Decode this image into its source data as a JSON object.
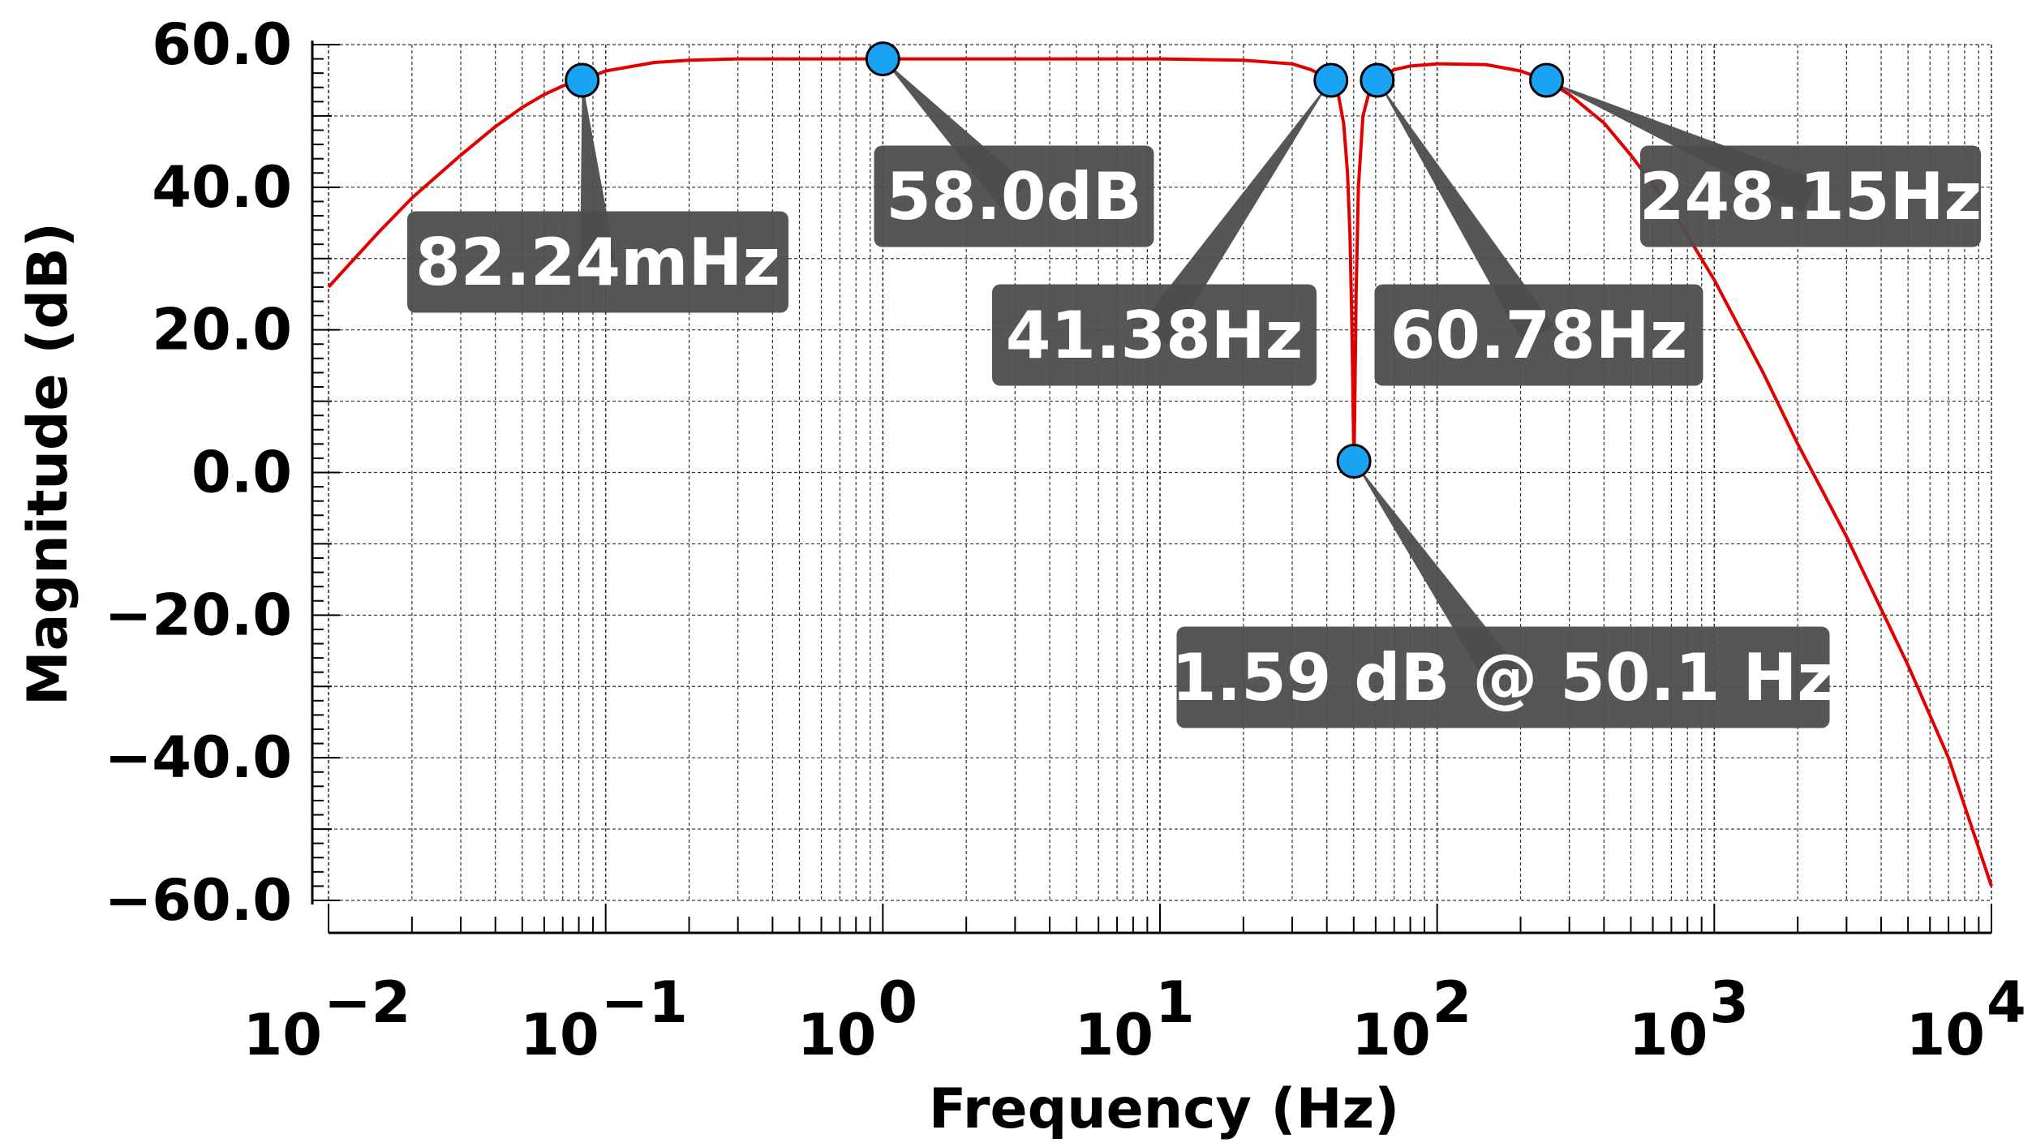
{
  "chart_data": {
    "type": "line",
    "title": "",
    "xlabel": "Frequency (Hz)",
    "ylabel": "Magnitude (dB)",
    "xscale": "log",
    "xlim": [
      0.01,
      10000
    ],
    "ylim": [
      -60,
      60
    ],
    "grid": true,
    "line_color": "#e00000",
    "marker_color": "#1aa3f5",
    "label_bg_color": "#4d4d4d",
    "x_ticks": [
      {
        "base": "10",
        "exp": "−2",
        "value": 0.01
      },
      {
        "base": "10",
        "exp": "−1",
        "value": 0.1
      },
      {
        "base": "10",
        "exp": "0",
        "value": 1
      },
      {
        "base": "10",
        "exp": "1",
        "value": 10
      },
      {
        "base": "10",
        "exp": "2",
        "value": 100
      },
      {
        "base": "10",
        "exp": "3",
        "value": 1000
      },
      {
        "base": "10",
        "exp": "4",
        "value": 10000
      }
    ],
    "y_ticks": [
      {
        "label": "60.0",
        "value": 60
      },
      {
        "label": "40.0",
        "value": 40
      },
      {
        "label": "20.0",
        "value": 20
      },
      {
        "label": "0.0",
        "value": 0
      },
      {
        "label": "−20.0",
        "value": -20
      },
      {
        "label": "−40.0",
        "value": -40
      },
      {
        "label": "−60.0",
        "value": -60
      }
    ],
    "series": [
      {
        "x": [
          0.01,
          0.015,
          0.02,
          0.03,
          0.04,
          0.05,
          0.06,
          0.07,
          0.08224,
          0.1,
          0.15,
          0.2,
          0.3,
          0.5,
          1,
          2,
          5,
          10,
          20,
          30,
          35,
          38,
          41.38,
          44,
          46,
          47.5,
          48.5,
          49.3,
          49.8,
          50.1,
          50.4,
          51,
          52,
          54,
          57,
          60.78,
          70,
          80,
          100,
          150,
          200,
          248.15,
          300,
          400,
          500,
          700,
          1000,
          1500,
          2000,
          3000,
          5000,
          7000,
          10000
        ],
        "y": [
          26,
          33.5,
          38.5,
          44.5,
          48.5,
          51.2,
          53,
          54.2,
          55.0,
          56.3,
          57.5,
          57.8,
          58.0,
          58.0,
          58.0,
          58.0,
          58.0,
          58.0,
          57.8,
          57.3,
          56.5,
          55.8,
          55.0,
          53.0,
          49.0,
          42.0,
          33.0,
          20.0,
          8.0,
          1.59,
          8.0,
          25.0,
          40.0,
          50.0,
          53.5,
          55.0,
          56.5,
          57.0,
          57.3,
          57.2,
          56.3,
          55.0,
          53.0,
          49.0,
          44.5,
          37.0,
          27.0,
          14.0,
          4.0,
          -9.0,
          -27.0,
          -40.0,
          -58.0
        ]
      }
    ],
    "annotations": [
      {
        "text": "82.24mHz",
        "x": 0.08224,
        "y": 55.0
      },
      {
        "text": "58.0dB",
        "x": 1,
        "y": 58.0
      },
      {
        "text": "41.38Hz",
        "x": 41.38,
        "y": 55.0
      },
      {
        "text": "60.78Hz",
        "x": 60.78,
        "y": 55.0
      },
      {
        "text": "248.15Hz",
        "x": 248.15,
        "y": 55.0
      },
      {
        "text": "1.59 dB @ 50.1 Hz",
        "x": 50.1,
        "y": 1.59
      }
    ]
  }
}
